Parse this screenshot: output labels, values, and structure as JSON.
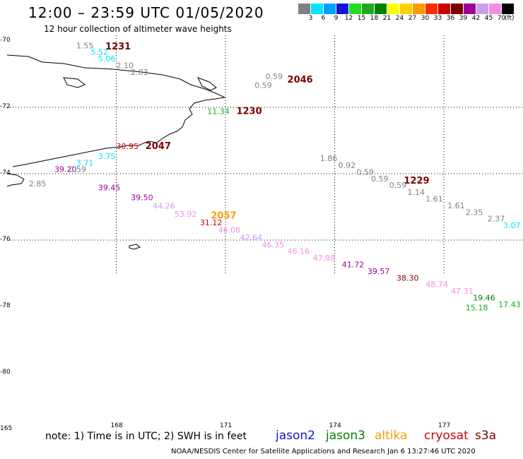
{
  "title": "12:00 – 23:59 UTC 01/05/2020",
  "subtitle": "12 hour collection of altimeter wave heights",
  "legend": {
    "unit": "(ft)",
    "items": [
      {
        "label": "3",
        "color": "#808080"
      },
      {
        "label": "6",
        "color": "#00e5ff"
      },
      {
        "label": "9",
        "color": "#00a2ff"
      },
      {
        "label": "12",
        "color": "#1414e0"
      },
      {
        "label": "15",
        "color": "#22dd22"
      },
      {
        "label": "18",
        "color": "#1daa1d"
      },
      {
        "label": "21",
        "color": "#008000"
      },
      {
        "label": "24",
        "color": "#ffff00"
      },
      {
        "label": "27",
        "color": "#ffd000"
      },
      {
        "label": "30",
        "color": "#ff9900"
      },
      {
        "label": "33",
        "color": "#ff2a00"
      },
      {
        "label": "36",
        "color": "#cc0000"
      },
      {
        "label": "39",
        "color": "#7a0000"
      },
      {
        "label": "42",
        "color": "#9c009c"
      },
      {
        "label": "45",
        "color": "#c9a0ee"
      },
      {
        "label": "70",
        "color": "#f28de6"
      },
      {
        "label": "",
        "color": "#000000"
      }
    ]
  },
  "axes": {
    "lat_labels": [
      "-70",
      "-72",
      "-74",
      "-76",
      "-78",
      "-80"
    ],
    "lon_labels": [
      "165",
      "168",
      "171",
      "174",
      "177"
    ]
  },
  "coastline_label": "coastline",
  "markers": [
    {
      "text": "1.55",
      "color": "#808080",
      "lon": 166.9,
      "lat": -70.22
    },
    {
      "text": "5.52",
      "color": "#00e5ff",
      "lon": 167.3,
      "lat": -70.42
    },
    {
      "text": "5.06",
      "color": "#00e5ff",
      "lon": 167.5,
      "lat": -70.62
    },
    {
      "text": "2.10",
      "color": "#808080",
      "lon": 168.0,
      "lat": -70.82
    },
    {
      "text": "2.83",
      "color": "#808080",
      "lon": 168.4,
      "lat": -71.02
    },
    {
      "text": "0.59",
      "color": "#808080",
      "lon": 172.1,
      "lat": -71.15
    },
    {
      "text": "0.59",
      "color": "#808080",
      "lon": 171.8,
      "lat": -71.42
    },
    {
      "text": "11.34",
      "color": "#1daa1d",
      "lon": 170.5,
      "lat": -72.2
    },
    {
      "text": "1.86",
      "color": "#808080",
      "lon": 173.6,
      "lat": -73.62
    },
    {
      "text": "0.92",
      "color": "#808080",
      "lon": 174.1,
      "lat": -73.83
    },
    {
      "text": "0.59",
      "color": "#808080",
      "lon": 174.6,
      "lat": -74.03
    },
    {
      "text": "0.59",
      "color": "#808080",
      "lon": 175.0,
      "lat": -74.23
    },
    {
      "text": "0.59",
      "color": "#808080",
      "lon": 175.5,
      "lat": -74.43
    },
    {
      "text": "1.14",
      "color": "#808080",
      "lon": 176.0,
      "lat": -74.64
    },
    {
      "text": "1.61",
      "color": "#808080",
      "lon": 176.5,
      "lat": -74.84
    },
    {
      "text": "1.61",
      "color": "#808080",
      "lon": 177.1,
      "lat": -75.04
    },
    {
      "text": "2.35",
      "color": "#808080",
      "lon": 177.6,
      "lat": -75.24
    },
    {
      "text": "2.37",
      "color": "#808080",
      "lon": 178.2,
      "lat": -75.44
    },
    {
      "text": "3.07",
      "color": "#00e5ff",
      "lon": 178.8,
      "lat": -75.64
    },
    {
      "text": "30.95",
      "color": "#cc0000",
      "lon": 168.0,
      "lat": -73.25
    },
    {
      "text": "3.75",
      "color": "#00e5ff",
      "lon": 167.5,
      "lat": -73.55
    },
    {
      "text": "3.71",
      "color": "#00e5ff",
      "lon": 166.9,
      "lat": -73.75
    },
    {
      "text": "39.20",
      "color": "#9c009c",
      "lon": 166.3,
      "lat": -73.95
    },
    {
      "text": "0.59",
      "color": "#808080",
      "lon": 166.7,
      "lat": -73.95
    },
    {
      "text": "2.85",
      "color": "#808080",
      "lon": 165.6,
      "lat": -74.38
    },
    {
      "text": "39.45",
      "color": "#9c009c",
      "lon": 167.5,
      "lat": -74.5
    },
    {
      "text": "39.50",
      "color": "#9c009c",
      "lon": 168.4,
      "lat": -74.8
    },
    {
      "text": "44.26",
      "color": "#c9a0ee",
      "lon": 169.0,
      "lat": -75.05
    },
    {
      "text": "53.92",
      "color": "#f28de6",
      "lon": 169.6,
      "lat": -75.3
    },
    {
      "text": "31.12",
      "color": "#cc0000",
      "lon": 170.3,
      "lat": -75.55
    },
    {
      "text": "46.08",
      "color": "#f28de6",
      "lon": 170.8,
      "lat": -75.78
    },
    {
      "text": "42.64",
      "color": "#c9a0ee",
      "lon": 171.4,
      "lat": -76.0
    },
    {
      "text": "46.35",
      "color": "#f28de6",
      "lon": 172.0,
      "lat": -76.22
    },
    {
      "text": "46.16",
      "color": "#f28de6",
      "lon": 172.7,
      "lat": -76.42
    },
    {
      "text": "47.98",
      "color": "#f28de6",
      "lon": 173.4,
      "lat": -76.62
    },
    {
      "text": "41.72",
      "color": "#9c009c",
      "lon": 174.2,
      "lat": -76.82
    },
    {
      "text": "39.57",
      "color": "#9c009c",
      "lon": 174.9,
      "lat": -77.02
    },
    {
      "text": "38.30",
      "color": "#7a0000",
      "lon": 175.7,
      "lat": -77.22
    },
    {
      "text": "48.74",
      "color": "#f28de6",
      "lon": 176.5,
      "lat": -77.42
    },
    {
      "text": "47.31",
      "color": "#f28de6",
      "lon": 177.2,
      "lat": -77.62
    },
    {
      "text": "19.46",
      "color": "#008000",
      "lon": 177.8,
      "lat": -77.82
    },
    {
      "text": "17.43",
      "color": "#1daa1d",
      "lon": 178.5,
      "lat": -78.02
    },
    {
      "text": "15.18",
      "color": "#1daa1d",
      "lon": 177.6,
      "lat": -78.12
    }
  ],
  "time_labels": [
    {
      "text": "1231",
      "color": "#7a0000",
      "lon": 167.7,
      "lat": -70.25
    },
    {
      "text": "2046",
      "color": "#7a0000",
      "lon": 172.7,
      "lat": -71.25
    },
    {
      "text": "1230",
      "color": "#7a0000",
      "lon": 171.3,
      "lat": -72.2
    },
    {
      "text": "2047",
      "color": "#7a0000",
      "lon": 168.8,
      "lat": -73.25
    },
    {
      "text": "1229",
      "color": "#7a0000",
      "lon": 175.9,
      "lat": -74.3
    },
    {
      "text": "2057",
      "color": "#ff9900",
      "lon": 170.6,
      "lat": -75.35
    }
  ],
  "footer": {
    "note": "note:  1) Time is in UTC;  2) SWH is in feet",
    "credit": "NOAA/NESDIS Center for Satellite Applications and Research    Jan  6 13:27:46 UTC 2020"
  },
  "satellites": [
    {
      "name": "jason2",
      "color": "#1414e0"
    },
    {
      "name": "jason3",
      "color": "#008000"
    },
    {
      "name": "altika",
      "color": "#ff9900"
    },
    {
      "name": "cryosat",
      "color": "#cc0000"
    },
    {
      "name": "s3a",
      "color": "#7a0000"
    }
  ]
}
